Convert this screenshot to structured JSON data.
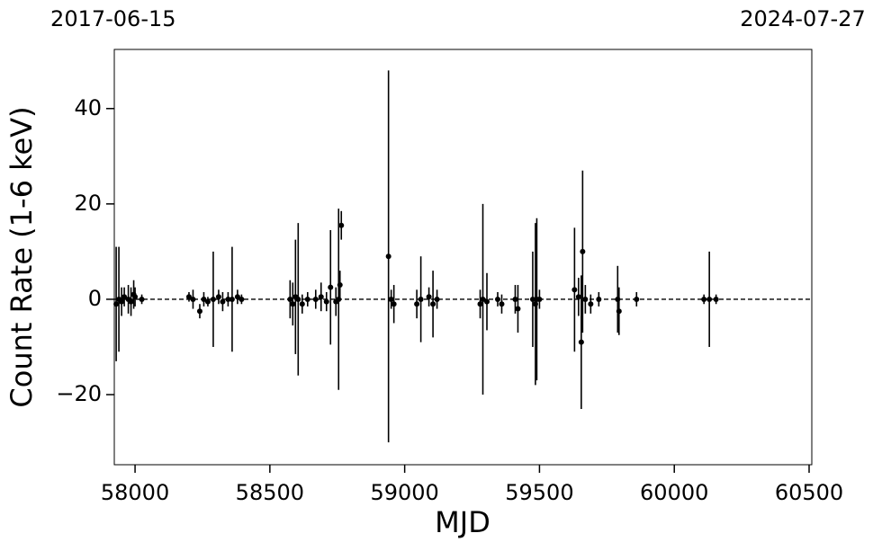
{
  "chart_data": {
    "type": "scatter",
    "x_label": "MJD",
    "y_label": "Count Rate (1-6 keV)",
    "xlim": [
      57923,
      60510
    ],
    "ylim": [
      -34.7,
      52.4
    ],
    "xticks": [
      58000,
      58500,
      59000,
      59500,
      60000,
      60500
    ],
    "yticks": [
      {
        "value": -20,
        "label": "−20"
      },
      0,
      20,
      40
    ],
    "x2ticks": [
      {
        "value": 57919,
        "label": "2017-06-15"
      },
      {
        "value": 60518,
        "label": "2024-07-27"
      }
    ],
    "reference_line": 0,
    "series": [
      {
        "color": "#000000",
        "x": [
          57930,
          57940,
          57950,
          57960,
          57975,
          57985,
          57995,
          58000,
          58025,
          58200,
          58215,
          58240,
          58255,
          58270,
          58290,
          58310,
          58325,
          58345,
          58360,
          58380,
          58395,
          58575,
          58585,
          58595,
          58605,
          58620,
          58640,
          58670,
          58690,
          58710,
          58725,
          58745,
          58755,
          58760,
          58765,
          58940,
          58950,
          58960,
          59045,
          59060,
          59090,
          59105,
          59120,
          59280,
          59290,
          59305,
          59345,
          59360,
          59410,
          59420,
          59475,
          59485,
          59490,
          59500,
          59630,
          59645,
          59655,
          59660,
          59670,
          59690,
          59720,
          59790,
          59795,
          59860,
          60110,
          60130,
          60155
        ],
        "values": [
          -1,
          0,
          -0.5,
          0.5,
          0,
          -0.5,
          1,
          0.5,
          0,
          0.5,
          0,
          -2.5,
          0,
          -0.5,
          0,
          0.5,
          -0.5,
          0,
          0,
          0.5,
          0,
          0,
          -1,
          0.5,
          0,
          -1,
          0,
          0,
          0.5,
          -0.5,
          2.5,
          -0.5,
          0,
          3,
          15.5,
          9,
          0,
          -1,
          -1,
          0,
          0.5,
          -1,
          0,
          -1,
          0,
          -0.5,
          0,
          -1,
          0,
          -2,
          0,
          -1,
          0,
          0,
          2,
          0.5,
          -9,
          10,
          0,
          -1,
          0,
          0,
          -2.5,
          0,
          0,
          0,
          0
        ],
        "errors": [
          12,
          11,
          3,
          2,
          3,
          3,
          3,
          2,
          1,
          1,
          2,
          1.5,
          1.5,
          1,
          10,
          1.5,
          2,
          1.5,
          11,
          1.5,
          1,
          4,
          4.5,
          12,
          16,
          2,
          1.5,
          2,
          3,
          2,
          12,
          3,
          19,
          3,
          3,
          39,
          2,
          4,
          3,
          9,
          2,
          7,
          2,
          3,
          20,
          6,
          1.5,
          2,
          3,
          5,
          10,
          17,
          17,
          2,
          13,
          4,
          14,
          17,
          3,
          2,
          1.5,
          7,
          5,
          1.5,
          1,
          10,
          1
        ]
      }
    ]
  }
}
